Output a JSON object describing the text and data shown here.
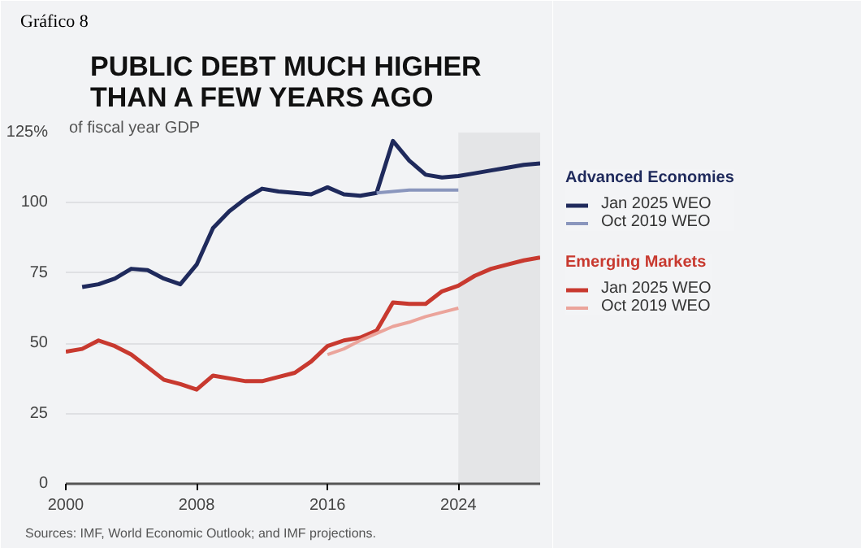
{
  "chart_data": {
    "type": "line",
    "title": "PUBLIC DEBT MUCH HIGHER\nTHAN A FEW YEARS AGO",
    "annotations": [
      "Gráfico 8",
      "Advanced Economies",
      "Emerging Markets",
      "Sources: IMF, World Economic Outlook; and IMF projections."
    ],
    "xlim": [
      2000,
      2029
    ],
    "xticks": [
      2000,
      2008,
      2016,
      2024
    ],
    "ylim": [
      0,
      125
    ],
    "yticks": [
      0,
      25,
      50,
      75,
      100,
      {
        "value": 125,
        "label": "125%"
      }
    ],
    "ylabel": "of fiscal year GDP",
    "grid": "y",
    "legend": "right",
    "bands": [
      {
        "axis": "x",
        "from": 2024,
        "to": 2029,
        "color": "#e4e5e7"
      }
    ],
    "series": [
      {
        "name": "Jan 2025 WEO",
        "color": "#1f2a5c",
        "x": [
          2001,
          2002,
          2003,
          2004,
          2005,
          2006,
          2007,
          2008,
          2009,
          2010,
          2011,
          2012,
          2013,
          2014,
          2015,
          2016,
          2017,
          2018,
          2019,
          2020,
          2021,
          2022,
          2023,
          2024,
          2025,
          2026,
          2027,
          2028,
          2029
        ],
        "values": [
          70,
          71,
          73,
          76.5,
          76,
          73,
          71,
          78,
          91,
          97,
          101.5,
          105,
          104,
          103.5,
          103,
          105.5,
          103,
          102.5,
          103.5,
          122,
          115,
          110,
          109,
          109.5,
          110.5,
          111.5,
          112.5,
          113.5,
          114
        ]
      },
      {
        "name": "Oct 2019 WEO",
        "color": "#8a96bd",
        "x": [
          2019,
          2020,
          2021,
          2022,
          2023,
          2024
        ],
        "values": [
          103.5,
          104,
          104.5,
          104.5,
          104.5,
          104.5
        ]
      },
      {
        "name": "Jan 2025 WEO",
        "color": "#c8392f",
        "x": [
          2000,
          2001,
          2002,
          2003,
          2004,
          2005,
          2006,
          2007,
          2008,
          2009,
          2010,
          2011,
          2012,
          2013,
          2014,
          2015,
          2016,
          2017,
          2018,
          2019,
          2020,
          2021,
          2022,
          2023,
          2024,
          2025,
          2026,
          2027,
          2028,
          2029
        ],
        "values": [
          47,
          48,
          51,
          49,
          46,
          41.5,
          37,
          35.5,
          33.5,
          38.5,
          37.5,
          36.5,
          36.5,
          38,
          39.5,
          43.5,
          49,
          51,
          52,
          54.5,
          64.5,
          64,
          64,
          68.5,
          70.5,
          74,
          76.5,
          78,
          79.5,
          80.5
        ]
      },
      {
        "name": "Oct 2019 WEO",
        "color": "#eba49b",
        "x": [
          2016,
          2017,
          2018,
          2019,
          2020,
          2021,
          2022,
          2023,
          2024
        ],
        "values": [
          46,
          48,
          51,
          53.5,
          56,
          57.5,
          59.5,
          61,
          62.5
        ]
      }
    ]
  }
}
